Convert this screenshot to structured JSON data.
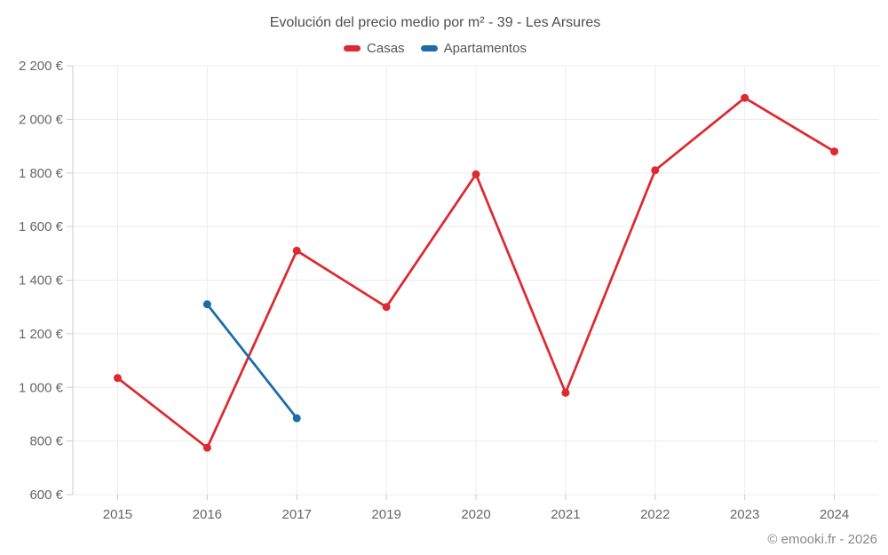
{
  "chart_data": {
    "type": "line",
    "title": "Evolución del precio medio por m² - 39 - Les Arsures",
    "footer": "© emooki.fr - 2026",
    "categories": [
      "2015",
      "2016",
      "2017",
      "2019",
      "2020",
      "2021",
      "2022",
      "2023",
      "2024"
    ],
    "series": [
      {
        "name": "Casas",
        "color": "#dc2a30",
        "values": [
          1035,
          775,
          1510,
          1300,
          1795,
          980,
          1810,
          2080,
          1880
        ]
      },
      {
        "name": "Apartamentos",
        "color": "#1b6ca8",
        "values": [
          null,
          1310,
          885,
          null,
          null,
          null,
          null,
          null,
          null
        ]
      }
    ],
    "y_axis": {
      "min": 600,
      "max": 2200,
      "tick_step": 200,
      "ticks": [
        {
          "value": 2200,
          "label": "2 200 €"
        },
        {
          "value": 2000,
          "label": "2 000 €"
        },
        {
          "value": 1800,
          "label": "1 800 €"
        },
        {
          "value": 1600,
          "label": "1 600 €"
        },
        {
          "value": 1400,
          "label": "1 400 €"
        },
        {
          "value": 1200,
          "label": "1 200 €"
        },
        {
          "value": 1000,
          "label": "1 000 €"
        },
        {
          "value": 800,
          "label": "800 €"
        },
        {
          "value": 600,
          "label": "600 €"
        }
      ]
    },
    "xlabel": "",
    "ylabel": "",
    "grid": true,
    "legend_position": "top",
    "colors": {
      "grid": "#ececec",
      "axis": "#cccccc",
      "tick_text": "#666666",
      "title_text": "#4d4d4d",
      "footer_text": "#888888"
    }
  }
}
